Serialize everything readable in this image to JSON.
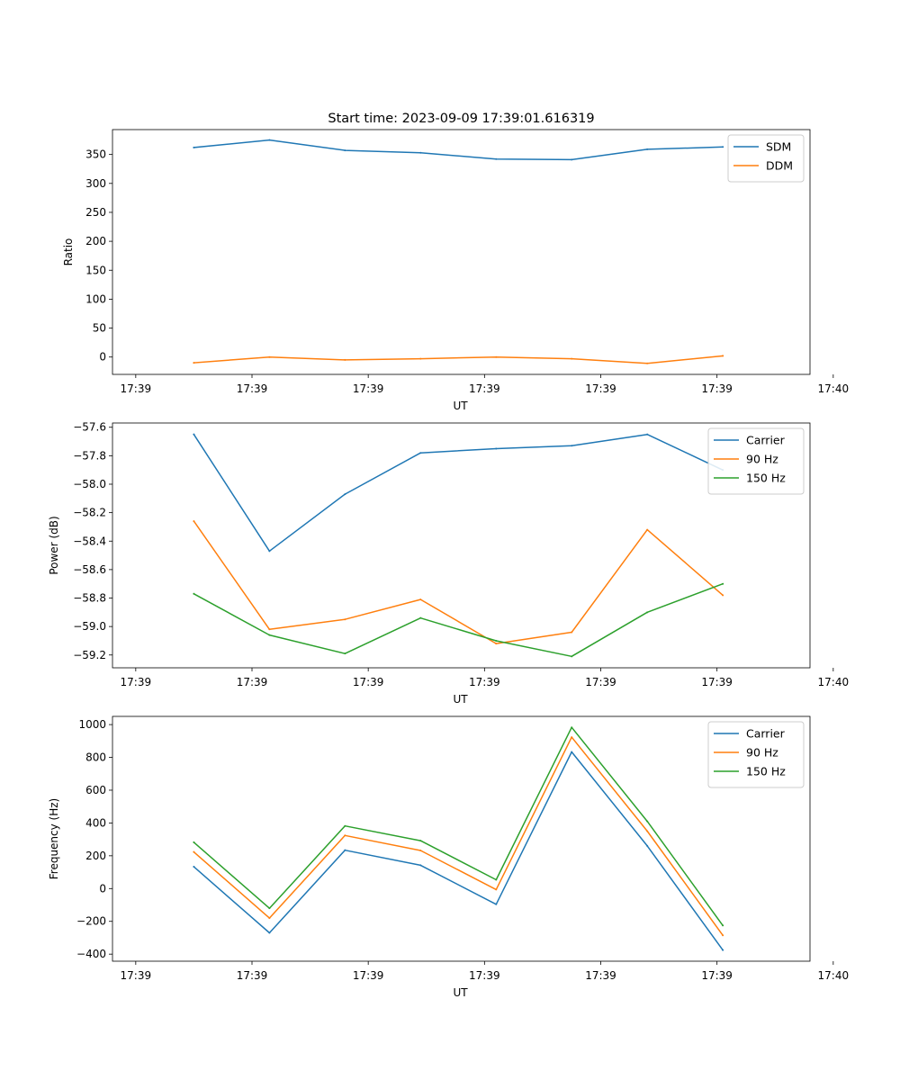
{
  "chart_data": [
    {
      "type": "line",
      "title": "Start time: 2023-09-09 17:39:01.616319",
      "xlabel": "UT",
      "ylabel": "Ratio",
      "x_ticks": [
        "17:39",
        "17:39",
        "17:39",
        "17:39",
        "17:39",
        "17:39",
        "17:40"
      ],
      "xlim": [
        -0.2,
        5.8
      ],
      "ylim": [
        -30,
        393
      ],
      "y_ticks": [
        0,
        50,
        100,
        150,
        200,
        250,
        300,
        350
      ],
      "y_tick_labels": [
        "0",
        "50",
        "100",
        "150",
        "200",
        "250",
        "300",
        "350"
      ],
      "x": [
        0.5,
        1.15,
        1.8,
        2.45,
        3.1,
        3.75,
        4.4,
        5.05
      ],
      "legend_position": "upper right",
      "series": [
        {
          "name": "SDM",
          "color": "#1f77b4",
          "values": [
            362,
            375,
            357,
            353,
            342,
            341,
            359,
            363
          ]
        },
        {
          "name": "DDM",
          "color": "#ff7f0e",
          "values": [
            -10,
            0,
            -5,
            -3,
            0,
            -3,
            -11,
            2
          ]
        }
      ]
    },
    {
      "type": "line",
      "title": "",
      "xlabel": "UT",
      "ylabel": "Power (dB)",
      "x_ticks": [
        "17:39",
        "17:39",
        "17:39",
        "17:39",
        "17:39",
        "17:39",
        "17:40"
      ],
      "xlim": [
        -0.2,
        5.8
      ],
      "ylim": [
        -59.29,
        -57.57
      ],
      "y_ticks": [
        -59.2,
        -59.0,
        -58.8,
        -58.6,
        -58.4,
        -58.2,
        -58.0,
        -57.8,
        -57.6
      ],
      "y_tick_labels": [
        "−59.2",
        "−59.0",
        "−58.8",
        "−58.6",
        "−58.4",
        "−58.2",
        "−58.0",
        "−57.8",
        "−57.6"
      ],
      "x": [
        0.5,
        1.15,
        1.8,
        2.45,
        3.1,
        3.75,
        4.4,
        5.05
      ],
      "legend_position": "upper right",
      "series": [
        {
          "name": "Carrier",
          "color": "#1f77b4",
          "values": [
            -57.65,
            -58.47,
            -58.07,
            -57.78,
            -57.75,
            -57.73,
            -57.65,
            -57.9
          ]
        },
        {
          "name": "90 Hz",
          "color": "#ff7f0e",
          "values": [
            -58.26,
            -59.02,
            -58.95,
            -58.81,
            -59.12,
            -59.04,
            -58.32,
            -58.78
          ]
        },
        {
          "name": "150 Hz",
          "color": "#2ca02c",
          "values": [
            -58.77,
            -59.06,
            -59.19,
            -58.94,
            -59.1,
            -59.21,
            -58.9,
            -58.7
          ]
        }
      ]
    },
    {
      "type": "line",
      "title": "",
      "xlabel": "UT",
      "ylabel": "Frequency (Hz)",
      "x_ticks": [
        "17:39",
        "17:39",
        "17:39",
        "17:39",
        "17:39",
        "17:39",
        "17:40"
      ],
      "xlim": [
        -0.2,
        5.8
      ],
      "ylim": [
        -443,
        1050
      ],
      "y_ticks": [
        -400,
        -200,
        0,
        200,
        400,
        600,
        800,
        1000
      ],
      "y_tick_labels": [
        "−400",
        "−200",
        "0",
        "200",
        "400",
        "600",
        "800",
        "1000"
      ],
      "x": [
        0.5,
        1.15,
        1.8,
        2.45,
        3.1,
        3.75,
        4.4,
        5.05
      ],
      "legend_position": "upper right",
      "series": [
        {
          "name": "Carrier",
          "color": "#1f77b4",
          "values": [
            133,
            -270,
            234,
            142,
            -96,
            833,
            260,
            -375
          ]
        },
        {
          "name": "90 Hz",
          "color": "#ff7f0e",
          "values": [
            223,
            -180,
            324,
            232,
            -6,
            923,
            350,
            -285
          ]
        },
        {
          "name": "150 Hz",
          "color": "#2ca02c",
          "values": [
            282,
            -120,
            382,
            292,
            54,
            983,
            410,
            -225
          ]
        }
      ]
    }
  ]
}
